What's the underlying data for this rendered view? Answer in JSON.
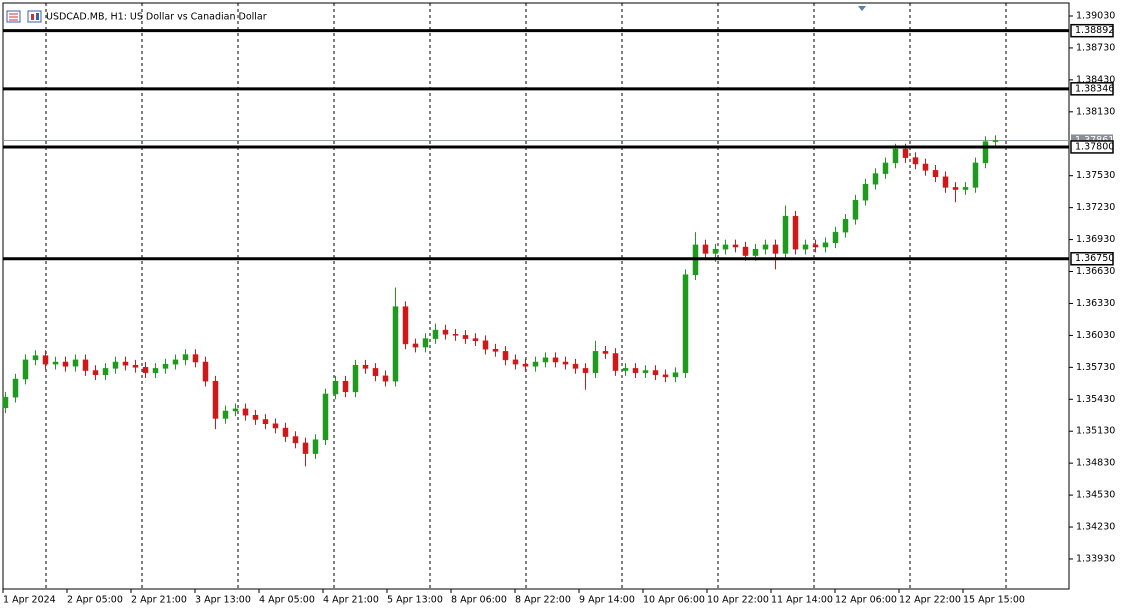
{
  "chart_data": {
    "type": "candlestick",
    "title": "USDCAD.MB, H1:  US Dollar vs Canadian Dollar",
    "ylim": [
      1.33648,
      1.39152
    ],
    "yticks": [
      {
        "value": 1.3903,
        "label": "1.39030"
      },
      {
        "value": 1.3873,
        "label": "1.38730"
      },
      {
        "value": 1.3843,
        "label": "1.38430"
      },
      {
        "value": 1.3813,
        "label": "1.38130"
      },
      {
        "value": 1.3753,
        "label": "1.37530"
      },
      {
        "value": 1.3723,
        "label": "1.37230"
      },
      {
        "value": 1.3693,
        "label": "1.36930"
      },
      {
        "value": 1.3663,
        "label": "1.36630"
      },
      {
        "value": 1.3633,
        "label": "1.36330"
      },
      {
        "value": 1.3603,
        "label": "1.36030"
      },
      {
        "value": 1.3573,
        "label": "1.35730"
      },
      {
        "value": 1.3543,
        "label": "1.35430"
      },
      {
        "value": 1.3513,
        "label": "1.35130"
      },
      {
        "value": 1.3483,
        "label": "1.34830"
      },
      {
        "value": 1.3453,
        "label": "1.34530"
      },
      {
        "value": 1.3423,
        "label": "1.34230"
      },
      {
        "value": 1.3393,
        "label": "1.33930"
      }
    ],
    "xlabels": [
      "1 Apr 2024",
      "2 Apr 05:00",
      "2 Apr 21:00",
      "3 Apr 13:00",
      "4 Apr 05:00",
      "4 Apr 21:00",
      "5 Apr 13:00",
      "8 Apr 06:00",
      "8 Apr 22:00",
      "9 Apr 14:00",
      "10 Apr 06:00",
      "10 Apr 22:00",
      "11 Apr 14:00",
      "12 Apr 06:00",
      "12 Apr 22:00",
      "15 Apr 15:00"
    ],
    "levels": [
      {
        "value": 1.38892,
        "label": "1.38892"
      },
      {
        "value": 1.38346,
        "label": "1.38346"
      },
      {
        "value": 1.378,
        "label": "1.37800"
      },
      {
        "value": 1.3675,
        "label": "1.36750"
      }
    ],
    "last_price": {
      "value": 1.37861,
      "label": "1.37861"
    },
    "bull_color": "#1f9a1f",
    "bear_color": "#d01818",
    "candles": [
      [
        1.3535,
        1.355,
        1.353,
        1.3545
      ],
      [
        1.3545,
        1.3567,
        1.354,
        1.3562
      ],
      [
        1.3562,
        1.3585,
        1.3557,
        1.358
      ],
      [
        1.358,
        1.3589,
        1.3575,
        1.3584
      ],
      [
        1.3584,
        1.3589,
        1.3571,
        1.3576
      ],
      [
        1.3576,
        1.3583,
        1.3571,
        1.3578
      ],
      [
        1.3578,
        1.3583,
        1.3569,
        1.3574
      ],
      [
        1.3574,
        1.3585,
        1.3569,
        1.358
      ],
      [
        1.358,
        1.3585,
        1.3565,
        1.357
      ],
      [
        1.357,
        1.3575,
        1.3561,
        1.3566
      ],
      [
        1.3566,
        1.3577,
        1.3561,
        1.3572
      ],
      [
        1.3572,
        1.3583,
        1.3567,
        1.3578
      ],
      [
        1.3578,
        1.3583,
        1.357,
        1.3575
      ],
      [
        1.3575,
        1.358,
        1.3568,
        1.3573
      ],
      [
        1.3573,
        1.3578,
        1.3563,
        1.3568
      ],
      [
        1.3568,
        1.3577,
        1.3563,
        1.3572
      ],
      [
        1.3572,
        1.3581,
        1.3567,
        1.3576
      ],
      [
        1.3576,
        1.3585,
        1.3571,
        1.358
      ],
      [
        1.358,
        1.359,
        1.3575,
        1.3585
      ],
      [
        1.3585,
        1.359,
        1.3573,
        1.3578
      ],
      [
        1.3578,
        1.3583,
        1.3555,
        1.356
      ],
      [
        1.356,
        1.3565,
        1.3515,
        1.3525
      ],
      [
        1.3525,
        1.3537,
        1.352,
        1.3532
      ],
      [
        1.3532,
        1.3539,
        1.3527,
        1.3534
      ],
      [
        1.3534,
        1.3539,
        1.3523,
        1.3528
      ],
      [
        1.3528,
        1.3533,
        1.3519,
        1.3524
      ],
      [
        1.3524,
        1.3529,
        1.3515,
        1.352
      ],
      [
        1.352,
        1.3525,
        1.3511,
        1.3516
      ],
      [
        1.3516,
        1.3521,
        1.3503,
        1.3508
      ],
      [
        1.3508,
        1.3513,
        1.3497,
        1.3502
      ],
      [
        1.3502,
        1.3507,
        1.348,
        1.3492
      ],
      [
        1.3492,
        1.351,
        1.3487,
        1.3505
      ],
      [
        1.3505,
        1.3553,
        1.35,
        1.3548
      ],
      [
        1.3548,
        1.3565,
        1.3543,
        1.356
      ],
      [
        1.356,
        1.3565,
        1.3545,
        1.355
      ],
      [
        1.355,
        1.358,
        1.3545,
        1.3575
      ],
      [
        1.3575,
        1.358,
        1.3567,
        1.3572
      ],
      [
        1.3572,
        1.3577,
        1.356,
        1.3565
      ],
      [
        1.3565,
        1.357,
        1.3555,
        1.356
      ],
      [
        1.356,
        1.3648,
        1.3555,
        1.363
      ],
      [
        1.363,
        1.3635,
        1.359,
        1.3595
      ],
      [
        1.3595,
        1.36,
        1.3587,
        1.3592
      ],
      [
        1.3592,
        1.3605,
        1.3587,
        1.36
      ],
      [
        1.36,
        1.3614,
        1.3595,
        1.3608
      ],
      [
        1.3608,
        1.3613,
        1.3599,
        1.3604
      ],
      [
        1.3604,
        1.3609,
        1.3598,
        1.3603
      ],
      [
        1.3603,
        1.3608,
        1.3595,
        1.36
      ],
      [
        1.36,
        1.3605,
        1.3593,
        1.3598
      ],
      [
        1.3598,
        1.3603,
        1.3585,
        1.359
      ],
      [
        1.359,
        1.3595,
        1.3583,
        1.3588
      ],
      [
        1.3588,
        1.3593,
        1.3575,
        1.358
      ],
      [
        1.358,
        1.3585,
        1.3571,
        1.3576
      ],
      [
        1.3576,
        1.3581,
        1.3569,
        1.3574
      ],
      [
        1.3574,
        1.3583,
        1.3569,
        1.3578
      ],
      [
        1.3578,
        1.3587,
        1.3573,
        1.3582
      ],
      [
        1.3582,
        1.3587,
        1.3573,
        1.3578
      ],
      [
        1.3578,
        1.3583,
        1.3571,
        1.3576
      ],
      [
        1.3576,
        1.3581,
        1.3567,
        1.3572
      ],
      [
        1.3572,
        1.3577,
        1.3552,
        1.3568
      ],
      [
        1.3568,
        1.3598,
        1.3563,
        1.3588
      ],
      [
        1.3588,
        1.3593,
        1.3581,
        1.3586
      ],
      [
        1.3586,
        1.3591,
        1.3565,
        1.357
      ],
      [
        1.357,
        1.3577,
        1.3565,
        1.3572
      ],
      [
        1.3572,
        1.3577,
        1.3563,
        1.3568
      ],
      [
        1.3568,
        1.3575,
        1.3563,
        1.357
      ],
      [
        1.357,
        1.3575,
        1.3561,
        1.3566
      ],
      [
        1.3566,
        1.3571,
        1.3559,
        1.3564
      ],
      [
        1.3564,
        1.3573,
        1.3559,
        1.3568
      ],
      [
        1.3568,
        1.3665,
        1.3563,
        1.366
      ],
      [
        1.366,
        1.37,
        1.3655,
        1.3688
      ],
      [
        1.3688,
        1.3693,
        1.3675,
        1.368
      ],
      [
        1.368,
        1.3689,
        1.3672,
        1.3684
      ],
      [
        1.3684,
        1.3693,
        1.3679,
        1.3688
      ],
      [
        1.3688,
        1.3693,
        1.3681,
        1.3686
      ],
      [
        1.3686,
        1.3691,
        1.3673,
        1.3678
      ],
      [
        1.3678,
        1.3689,
        1.3673,
        1.3684
      ],
      [
        1.3684,
        1.3693,
        1.3679,
        1.3688
      ],
      [
        1.3688,
        1.3693,
        1.3665,
        1.368
      ],
      [
        1.368,
        1.3725,
        1.3675,
        1.3715
      ],
      [
        1.3715,
        1.372,
        1.3679,
        1.3684
      ],
      [
        1.3684,
        1.3693,
        1.3679,
        1.3688
      ],
      [
        1.3688,
        1.3693,
        1.3681,
        1.3686
      ],
      [
        1.3686,
        1.3695,
        1.3681,
        1.369
      ],
      [
        1.369,
        1.3705,
        1.3685,
        1.37
      ],
      [
        1.37,
        1.3717,
        1.3695,
        1.3712
      ],
      [
        1.3712,
        1.3735,
        1.3707,
        1.373
      ],
      [
        1.373,
        1.375,
        1.3725,
        1.3745
      ],
      [
        1.3745,
        1.376,
        1.374,
        1.3755
      ],
      [
        1.3755,
        1.377,
        1.375,
        1.3765
      ],
      [
        1.3765,
        1.3783,
        1.376,
        1.3778
      ],
      [
        1.3778,
        1.3783,
        1.3765,
        1.377
      ],
      [
        1.377,
        1.3775,
        1.3759,
        1.3764
      ],
      [
        1.3764,
        1.3769,
        1.3753,
        1.3758
      ],
      [
        1.3758,
        1.3763,
        1.3747,
        1.3752
      ],
      [
        1.3752,
        1.3757,
        1.3737,
        1.3742
      ],
      [
        1.3742,
        1.3747,
        1.3728,
        1.374
      ],
      [
        1.374,
        1.3747,
        1.3735,
        1.3742
      ],
      [
        1.3742,
        1.377,
        1.3737,
        1.3765
      ],
      [
        1.3765,
        1.379,
        1.376,
        1.3785
      ],
      [
        1.3785,
        1.3791,
        1.378,
        1.3786
      ]
    ]
  }
}
